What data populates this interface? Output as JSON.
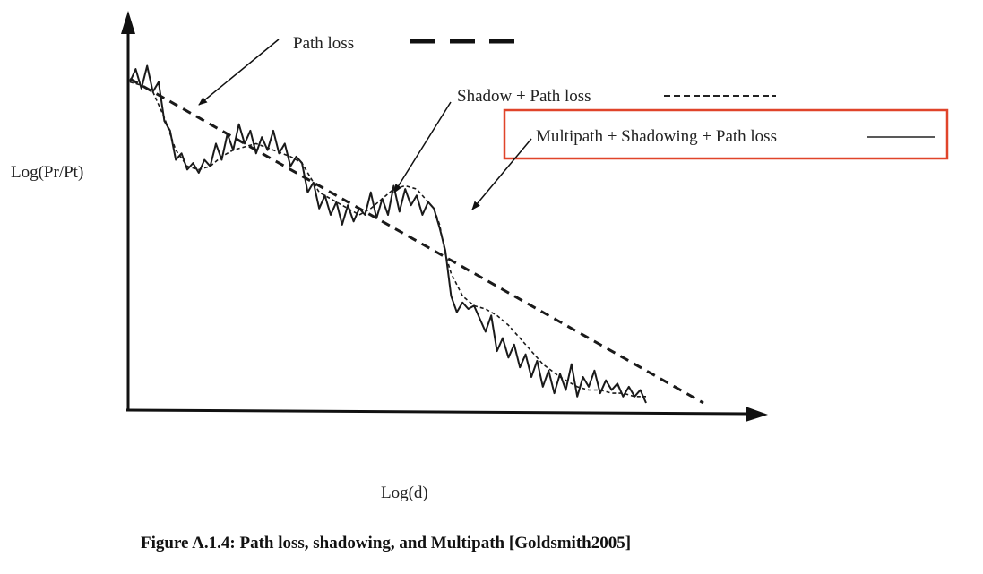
{
  "chart_data": {
    "type": "line",
    "title": "",
    "xlabel": "Log(d)",
    "ylabel": "Log(Pr/Pt)",
    "caption": "Figure A.1.4: Path loss, shadowing, and Multipath [Goldsmith2005]",
    "xlim": [
      0,
      100
    ],
    "ylim": [
      0,
      100
    ],
    "grid": false,
    "axis_ticks": false,
    "legend": [
      {
        "name": "Path loss",
        "style": "thick dashed"
      },
      {
        "name": "Shadow + Path loss",
        "style": "fine dashed"
      },
      {
        "name": "Multipath + Shadowing + Path loss",
        "style": "solid",
        "highlighted": true
      }
    ],
    "highlight_color": "#e0442a",
    "line_color": "#1a1a1a",
    "series": [
      {
        "name": "Path loss",
        "x": [
          0,
          100
        ],
        "y": [
          100,
          0
        ]
      },
      {
        "name": "Shadow + Path loss",
        "x": [
          0,
          2,
          4,
          6,
          8,
          10,
          12,
          14,
          16,
          18,
          20,
          22,
          25,
          28,
          30,
          33,
          36,
          38,
          40,
          42,
          44,
          46,
          48,
          50,
          52,
          53,
          54,
          55,
          56,
          58,
          60,
          62,
          64,
          66,
          68,
          70,
          72,
          75,
          78,
          80,
          82,
          84,
          86,
          88,
          90
        ],
        "y": [
          99,
          98,
          96,
          88,
          78,
          73,
          72,
          73,
          76,
          78,
          79,
          80,
          78,
          76,
          74,
          65,
          62,
          60,
          58,
          60,
          63,
          66,
          67,
          66,
          62,
          60,
          55,
          46,
          40,
          33,
          30,
          29,
          27,
          24,
          20,
          16,
          12,
          8,
          5,
          4,
          4,
          3,
          3,
          2,
          2
        ]
      },
      {
        "name": "Multipath + Shadowing + Path loss",
        "x": [
          0,
          1,
          2,
          3,
          4,
          5,
          6,
          7,
          8,
          9,
          10,
          11,
          12,
          13,
          14,
          15,
          16,
          17,
          18,
          19,
          20,
          21,
          22,
          23,
          24,
          25,
          26,
          27,
          28,
          29,
          30,
          31,
          32,
          33,
          34,
          35,
          36,
          37,
          38,
          39,
          40,
          41,
          42,
          43,
          44,
          45,
          46,
          47,
          48,
          49,
          50,
          51,
          52,
          53,
          54,
          55,
          56,
          57,
          58,
          59,
          60,
          61,
          62,
          63,
          64,
          65,
          66,
          67,
          68,
          69,
          70,
          71,
          72,
          73,
          74,
          75,
          76,
          77,
          78,
          79,
          80,
          81,
          82,
          83,
          84,
          85,
          86,
          87,
          88,
          89,
          90
        ],
        "y": [
          99,
          103,
          97,
          104,
          96,
          99,
          87,
          84,
          75,
          77,
          72,
          74,
          71,
          75,
          73,
          80,
          75,
          83,
          78,
          86,
          80,
          84,
          77,
          82,
          78,
          84,
          77,
          80,
          73,
          76,
          74,
          65,
          68,
          60,
          64,
          58,
          62,
          55,
          61,
          56,
          60,
          58,
          65,
          57,
          63,
          58,
          67,
          59,
          66,
          61,
          64,
          58,
          62,
          60,
          54,
          47,
          33,
          28,
          31,
          29,
          30,
          26,
          22,
          27,
          16,
          20,
          14,
          18,
          11,
          15,
          8,
          13,
          5,
          10,
          3,
          9,
          4,
          12,
          2,
          8,
          5,
          10,
          3,
          7,
          4,
          6,
          2,
          5,
          2,
          4,
          0
        ]
      }
    ]
  }
}
